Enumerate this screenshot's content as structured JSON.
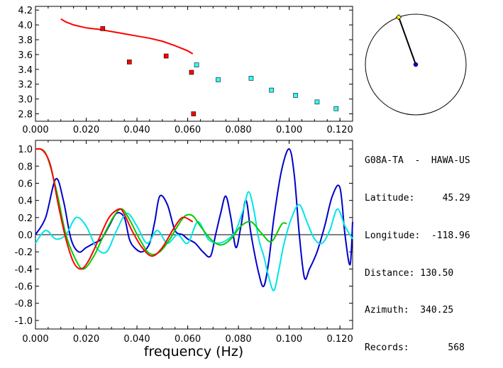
{
  "info": {
    "station": "G08A-TA  -  HAWA-US",
    "latitude": "Latitude:     45.29",
    "longitude": "Longitude:  -118.96",
    "distance": "Distance: 130.50",
    "azimuth": "Azimuth:  340.25",
    "records": "Records:       568"
  },
  "colors": {
    "red": "#ff0000",
    "square_red": "#ff0000",
    "square_cyan": "#33ffff",
    "blue": "#0000cc",
    "cyan": "#00e5e5",
    "green": "#00cc00",
    "axis": "#000000"
  },
  "chart_data": [
    {
      "type": "scatter",
      "xlim": [
        0.0,
        0.125
      ],
      "ylim": [
        2.7,
        4.25
      ],
      "xticks": [
        "0.000",
        "0.020",
        "0.040",
        "0.060",
        "0.080",
        "0.100",
        "0.120"
      ],
      "yticks": [
        "2.8",
        "3.0",
        "3.2",
        "3.4",
        "3.6",
        "3.8",
        "4.0",
        "4.2"
      ],
      "series": [
        {
          "kind": "line",
          "color": "red",
          "x": [
            0.01,
            0.012,
            0.015,
            0.02,
            0.025,
            0.03,
            0.035,
            0.04,
            0.045,
            0.05,
            0.055,
            0.06,
            0.062
          ],
          "y": [
            4.08,
            4.04,
            4.0,
            3.96,
            3.94,
            3.91,
            3.88,
            3.85,
            3.82,
            3.78,
            3.72,
            3.65,
            3.61
          ]
        },
        {
          "kind": "points",
          "color": "square_red",
          "x": [
            0.0265,
            0.037,
            0.0515,
            0.0615,
            0.0623
          ],
          "y": [
            3.95,
            3.5,
            3.58,
            3.36,
            2.8
          ]
        },
        {
          "kind": "points",
          "color": "square_cyan",
          "x": [
            0.0635,
            0.072,
            0.085,
            0.093,
            0.1025,
            0.111,
            0.1185
          ],
          "y": [
            3.46,
            3.26,
            3.28,
            3.12,
            3.05,
            2.96,
            2.87
          ]
        }
      ]
    },
    {
      "type": "line",
      "xlim": [
        0.0,
        0.125
      ],
      "ylim": [
        -1.1,
        1.1
      ],
      "xticks": [
        "0.000",
        "0.020",
        "0.040",
        "0.060",
        "0.080",
        "0.100",
        "0.120"
      ],
      "yticks": [
        "1.0",
        "0.8",
        "0.6",
        "0.4",
        "0.2",
        "0.0",
        "-0.2",
        "-0.4",
        "-0.6",
        "-0.8",
        "-1.0"
      ],
      "xlabel": "frequency (Hz)",
      "series": [
        {
          "color": "blue",
          "x": [
            0.0,
            0.004,
            0.008,
            0.011,
            0.014,
            0.017,
            0.02,
            0.023,
            0.026,
            0.029,
            0.032,
            0.035,
            0.037,
            0.039,
            0.042,
            0.045,
            0.047,
            0.049,
            0.052,
            0.055,
            0.058,
            0.06,
            0.063,
            0.066,
            0.069,
            0.071,
            0.073,
            0.075,
            0.077,
            0.079,
            0.081,
            0.083,
            0.085,
            0.088,
            0.09,
            0.092,
            0.094,
            0.097,
            0.1,
            0.102,
            0.104,
            0.106,
            0.108,
            0.111,
            0.114,
            0.117,
            0.12,
            0.122,
            0.124,
            0.125
          ],
          "y": [
            0.0,
            0.2,
            0.65,
            0.4,
            -0.05,
            -0.2,
            -0.15,
            -0.1,
            -0.05,
            0.1,
            0.25,
            0.2,
            -0.05,
            -0.15,
            -0.2,
            -0.1,
            0.15,
            0.45,
            0.35,
            0.05,
            0.0,
            -0.05,
            -0.1,
            -0.2,
            -0.25,
            0.0,
            0.25,
            0.45,
            0.2,
            -0.15,
            0.1,
            0.4,
            0.0,
            -0.45,
            -0.6,
            -0.3,
            0.2,
            0.75,
            1.0,
            0.7,
            0.0,
            -0.5,
            -0.4,
            -0.2,
            0.1,
            0.45,
            0.55,
            0.0,
            -0.35,
            0.15
          ]
        },
        {
          "color": "cyan",
          "x": [
            0.0,
            0.004,
            0.008,
            0.012,
            0.016,
            0.02,
            0.024,
            0.028,
            0.032,
            0.036,
            0.04,
            0.044,
            0.048,
            0.052,
            0.056,
            0.06,
            0.064,
            0.068,
            0.072,
            0.076,
            0.079,
            0.082,
            0.084,
            0.086,
            0.088,
            0.09,
            0.092,
            0.094,
            0.096,
            0.098,
            0.101,
            0.104,
            0.107,
            0.11,
            0.113,
            0.116,
            0.119,
            0.122,
            0.125
          ],
          "y": [
            -0.1,
            0.05,
            -0.05,
            0.0,
            0.2,
            0.1,
            -0.15,
            -0.2,
            0.05,
            0.25,
            0.1,
            -0.1,
            0.05,
            -0.1,
            0.0,
            -0.1,
            0.15,
            -0.05,
            -0.1,
            -0.05,
            0.05,
            0.3,
            0.5,
            0.3,
            -0.05,
            -0.25,
            -0.5,
            -0.65,
            -0.4,
            -0.1,
            0.2,
            0.35,
            0.15,
            -0.05,
            -0.1,
            0.05,
            0.3,
            0.1,
            -0.05
          ]
        },
        {
          "color": "green",
          "x": [
            0.0,
            0.004,
            0.008,
            0.012,
            0.016,
            0.019,
            0.023,
            0.027,
            0.031,
            0.034,
            0.037,
            0.041,
            0.045,
            0.049,
            0.053,
            0.056,
            0.059,
            0.062,
            0.065,
            0.069,
            0.073,
            0.077,
            0.081,
            0.085,
            0.089,
            0.093,
            0.097,
            0.099
          ],
          "y": [
            1.0,
            0.95,
            0.55,
            0.0,
            -0.3,
            -0.4,
            -0.25,
            0.0,
            0.22,
            0.3,
            0.18,
            -0.05,
            -0.22,
            -0.2,
            -0.05,
            0.1,
            0.22,
            0.22,
            0.1,
            -0.05,
            -0.12,
            -0.05,
            0.1,
            0.15,
            0.02,
            -0.08,
            0.12,
            0.13
          ]
        },
        {
          "color": "red",
          "x": [
            0.0,
            0.003,
            0.006,
            0.009,
            0.012,
            0.015,
            0.018,
            0.021,
            0.025,
            0.029,
            0.033,
            0.035,
            0.038,
            0.042,
            0.046,
            0.05,
            0.054,
            0.057,
            0.059,
            0.062
          ],
          "y": [
            1.0,
            0.98,
            0.8,
            0.35,
            -0.05,
            -0.32,
            -0.4,
            -0.3,
            -0.05,
            0.2,
            0.3,
            0.24,
            0.05,
            -0.15,
            -0.25,
            -0.15,
            0.05,
            0.18,
            0.2,
            0.15
          ]
        }
      ]
    },
    {
      "type": "polar",
      "azimuth_deg": 340.25,
      "colors": {
        "circle": "#000000",
        "line": "#000000",
        "center": "#0000cc",
        "tip": "#ffff00"
      }
    }
  ]
}
